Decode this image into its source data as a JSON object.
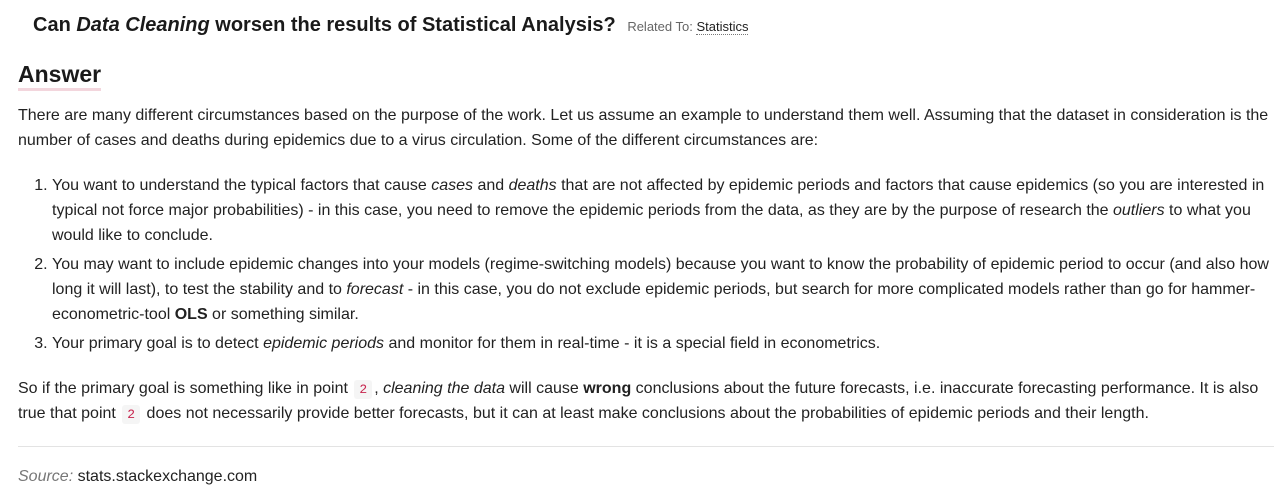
{
  "question": {
    "prefix": "Can ",
    "emphasis": "Data Cleaning",
    "suffix": " worsen the results of Statistical Analysis?",
    "related_label": "Related To:",
    "related_topic": "Statistics"
  },
  "answer": {
    "heading": "Answer",
    "intro": "There are many different circumstances based on the purpose of the work. Let us assume an example to understand them well. Assuming that the dataset in consideration is the number of cases and deaths during epidemics due to a virus circulation. Some of the different circumstances are:",
    "items": [
      {
        "t1": "You want to understand the typical factors that cause ",
        "e1": "cases",
        "t2": " and ",
        "e2": "deaths",
        "t3": " that are not affected by epidemic periods and factors that cause epidemics (so you are interested in typical not force major probabilities) - in this case, you need to remove the epidemic periods from the data, as they are by the purpose of research the ",
        "e3": "outliers",
        "t4": " to what you would like to conclude."
      },
      {
        "t1": "You may want to include epidemic changes into your models (regime-switching models) because you want to know the probability of epidemic period to occur (and also how long it will last), to test the stability and to ",
        "e1": "forecast",
        "t2": " - in this case, you do not exclude epidemic periods, but search for more complicated models rather than go for hammer-econometric-tool ",
        "b1": "OLS",
        "t3": " or something similar."
      },
      {
        "t1": "Your primary goal is to detect ",
        "e1": "epidemic periods",
        "t2": " and monitor for them in real-time - it is a special field in econometrics."
      }
    ],
    "conclusion": {
      "t1": "So if the primary goal is something like in point ",
      "code1": "2",
      "t2": ", ",
      "e1": "cleaning the data",
      "t3": " will cause ",
      "b1": "wrong",
      "t4": " conclusions about the future forecasts, i.e. inaccurate forecasting performance. It is also true that point ",
      "code2": "2",
      "t5": " does not necessarily provide better forecasts, but it can at least make conclusions about the probabilities of epidemic periods and their length."
    }
  },
  "source": {
    "label": "Source:",
    "site": "stats.stackexchange.com"
  }
}
